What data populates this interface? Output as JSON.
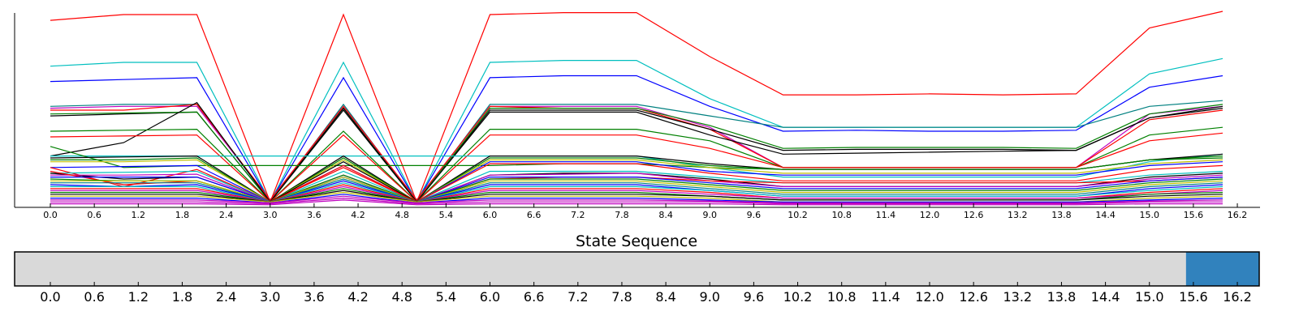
{
  "chart_data": [
    {
      "type": "line",
      "title": "",
      "xlabel": "",
      "ylabel": "",
      "xlim": [
        -0.5,
        16.5
      ],
      "ylim": [
        0,
        100
      ],
      "grid": false,
      "legend": "none",
      "x": [
        0,
        1,
        2,
        3,
        4,
        5,
        6,
        7,
        8,
        9,
        10,
        11,
        12,
        13,
        14,
        15,
        16
      ],
      "x_tick_labels": [
        "0.0",
        "0.6",
        "1.2",
        "1.8",
        "2.4",
        "3.0",
        "3.6",
        "4.2",
        "4.8",
        "5.4",
        "6.0",
        "6.6",
        "7.2",
        "7.8",
        "8.4",
        "9.0",
        "9.6",
        "10.2",
        "10.8",
        "11.4",
        "12.0",
        "12.6",
        "13.2",
        "13.8",
        "14.4",
        "15.0",
        "15.6",
        "16.2"
      ],
      "x_tick_positions": [
        0.0,
        0.6,
        1.2,
        1.8,
        2.4,
        3.0,
        3.6,
        4.2,
        4.8,
        5.4,
        6.0,
        6.6,
        7.2,
        7.8,
        8.4,
        9.0,
        9.6,
        10.2,
        10.8,
        11.4,
        12.0,
        12.6,
        13.2,
        13.8,
        14.4,
        15.0,
        15.6,
        16.2
      ],
      "series": [
        {
          "color": "#ff0000",
          "values": [
            97,
            100,
            100,
            2,
            100,
            2,
            100,
            101,
            101,
            78,
            58,
            58,
            58.5,
            58,
            58.5,
            93,
            102
          ]
        },
        {
          "color": "#00bfbf",
          "values": [
            73,
            75,
            75,
            2,
            75,
            2,
            75,
            76,
            76,
            56,
            41,
            41,
            41,
            41,
            41,
            69,
            77
          ]
        },
        {
          "color": "#0000ff",
          "values": [
            65,
            66,
            67,
            2,
            67,
            2,
            67,
            68,
            68,
            52,
            39,
            39.5,
            39,
            39,
            39.5,
            62,
            68
          ]
        },
        {
          "color": "#008080",
          "values": [
            52,
            53,
            53,
            2,
            53,
            2,
            53,
            53,
            53,
            47,
            41,
            41,
            41,
            41,
            41,
            52,
            55
          ]
        },
        {
          "color": "#bf00bf",
          "values": [
            51,
            52,
            52,
            3,
            52,
            3,
            52,
            52,
            52,
            41,
            20,
            20,
            20,
            20,
            20,
            48,
            52
          ]
        },
        {
          "color": "#ff0000",
          "values": [
            50,
            50,
            53,
            3,
            52,
            3,
            52,
            51,
            51,
            40,
            20,
            20,
            20,
            20,
            20,
            45,
            50
          ]
        },
        {
          "color": "#000000",
          "values": [
            47,
            48,
            49,
            2,
            50,
            2,
            50,
            50,
            50,
            40,
            29,
            29.5,
            29.5,
            29.5,
            29,
            46,
            51
          ]
        },
        {
          "color": "#008000",
          "values": [
            48,
            48.5,
            49,
            2,
            51,
            2,
            51,
            51,
            51,
            42,
            30,
            30.5,
            30.5,
            30.5,
            30,
            48,
            53
          ]
        },
        {
          "color": "#000000",
          "values": [
            26,
            33,
            54,
            2,
            51,
            2,
            49,
            49,
            49,
            37,
            27,
            27.5,
            28,
            28.5,
            29,
            46,
            52
          ]
        },
        {
          "color": "#008000",
          "values": [
            39,
            39.5,
            40,
            2,
            39,
            2,
            40,
            40,
            40,
            34,
            20,
            20,
            20,
            20,
            20,
            37,
            41
          ]
        },
        {
          "color": "#ff0000",
          "values": [
            36,
            36.5,
            37,
            2,
            37,
            2,
            37,
            37,
            37,
            30,
            20,
            20,
            20,
            20,
            20,
            34,
            38
          ]
        },
        {
          "color": "#00bfbf",
          "values": [
            26,
            26,
            26,
            26,
            26,
            26,
            26,
            26,
            26,
            20,
            15,
            15,
            15,
            15,
            15,
            23,
            27
          ]
        },
        {
          "color": "#008000",
          "values": [
            31,
            20,
            21,
            21,
            21,
            21,
            21,
            22,
            22,
            20,
            19,
            19,
            19,
            19,
            19,
            24,
            26
          ]
        },
        {
          "color": "#000000",
          "values": [
            25,
            25.5,
            26,
            2,
            26,
            2,
            26,
            26,
            26,
            22,
            19,
            19,
            19,
            19,
            19,
            24,
            27
          ]
        },
        {
          "color": "#008000",
          "values": [
            24,
            24,
            25,
            2,
            25,
            2,
            25,
            25,
            25,
            21,
            19,
            19,
            19,
            19,
            19,
            24,
            25
          ]
        },
        {
          "color": "#bfbf00",
          "values": [
            23,
            23,
            24,
            2,
            24,
            2,
            24,
            24,
            24,
            20,
            17,
            17,
            17,
            17,
            17,
            22,
            24
          ]
        },
        {
          "color": "#0000ff",
          "values": [
            20,
            20.5,
            21,
            2,
            21,
            2,
            23,
            23,
            23,
            18,
            16,
            16,
            16,
            16,
            16,
            21,
            23
          ]
        },
        {
          "color": "#ff0000",
          "values": [
            20,
            10,
            19,
            2,
            21,
            2,
            22,
            22,
            22,
            17,
            13,
            13,
            13,
            13,
            13,
            19,
            21
          ]
        },
        {
          "color": "#00bfbf",
          "values": [
            17,
            17.5,
            18,
            2,
            18,
            2,
            18,
            18,
            18,
            15,
            12,
            12,
            12,
            12,
            12,
            16,
            18
          ]
        },
        {
          "color": "#000000",
          "values": [
            17,
            14,
            15,
            2,
            23,
            2,
            16,
            17,
            17,
            14,
            10,
            10,
            10,
            10,
            10,
            15,
            17
          ]
        },
        {
          "color": "#bf00bf",
          "values": [
            16,
            16,
            16.5,
            2,
            16,
            2,
            16,
            16.5,
            17,
            13,
            10,
            10,
            10,
            10,
            10,
            14,
            16
          ]
        },
        {
          "color": "#ff0000",
          "values": [
            18,
            11,
            13,
            2,
            20,
            2,
            14,
            15,
            15,
            13,
            12,
            12,
            12,
            12,
            12,
            13,
            15
          ]
        },
        {
          "color": "#0000ff",
          "values": [
            15,
            15,
            15,
            2,
            15,
            2,
            15,
            15,
            15,
            12,
            9,
            9,
            9,
            9,
            9,
            13,
            15
          ]
        },
        {
          "color": "#008000",
          "values": [
            14,
            13,
            13,
            2,
            16,
            2,
            14,
            14,
            14,
            11,
            8,
            8,
            8,
            8,
            8,
            12,
            14
          ]
        },
        {
          "color": "#bfbf00",
          "values": [
            13,
            13,
            13,
            2,
            15,
            2,
            13,
            13,
            13,
            10,
            7,
            7,
            7,
            7,
            7,
            11,
            13
          ]
        },
        {
          "color": "#008080",
          "values": [
            12,
            12,
            12,
            2,
            14,
            2,
            12,
            12,
            12,
            9,
            6,
            6,
            6,
            6,
            6,
            10,
            12
          ]
        },
        {
          "color": "#0000ff",
          "values": [
            11,
            10,
            11,
            2,
            13,
            2,
            11,
            11,
            11,
            8,
            5,
            5,
            5,
            5,
            5,
            9,
            11
          ]
        },
        {
          "color": "#00bfbf",
          "values": [
            10,
            10,
            10,
            2,
            12,
            2,
            10,
            10,
            10,
            8,
            5,
            5,
            5,
            5,
            5,
            8,
            10
          ]
        },
        {
          "color": "#ff0000",
          "values": [
            9,
            9,
            9,
            2,
            11,
            2,
            9,
            9,
            9,
            7,
            4,
            4,
            4,
            4,
            4,
            7,
            9
          ]
        },
        {
          "color": "#bf00bf",
          "values": [
            8,
            8,
            8,
            2,
            10,
            2,
            8,
            8,
            8,
            6,
            4,
            4,
            4,
            4,
            4,
            6,
            8
          ]
        },
        {
          "color": "#008000",
          "values": [
            7,
            7,
            7,
            2,
            9,
            2,
            7,
            7,
            7,
            5,
            3,
            3,
            3,
            3,
            3,
            6,
            7
          ]
        },
        {
          "color": "#000000",
          "values": [
            6,
            6,
            6,
            2,
            8,
            2,
            6,
            6,
            6,
            5,
            3,
            3,
            3,
            3,
            3,
            5,
            6
          ]
        },
        {
          "color": "#bfbf00",
          "values": [
            5,
            5,
            5,
            2,
            7,
            2,
            5,
            5,
            5,
            4,
            2,
            2,
            2,
            2,
            2,
            4,
            5
          ]
        },
        {
          "color": "#0000ff",
          "values": [
            4,
            4,
            4,
            1.5,
            6,
            1.5,
            4,
            4,
            4,
            3,
            2,
            2,
            2,
            2,
            2,
            3,
            4
          ]
        },
        {
          "color": "#bf00bf",
          "values": [
            3,
            3,
            3,
            1.5,
            5,
            1.5,
            3,
            3,
            3,
            2.5,
            1.5,
            1.5,
            1.5,
            1.5,
            1.5,
            2.5,
            3
          ]
        },
        {
          "color": "#bf00bf",
          "values": [
            2,
            2,
            2,
            1,
            4,
            1,
            2,
            2,
            2,
            2,
            1,
            1,
            1,
            1,
            1,
            2,
            2
          ]
        },
        {
          "color": "#bf00bf",
          "values": [
            1,
            1,
            1,
            0.5,
            3,
            0.5,
            1,
            1,
            1,
            1,
            0.5,
            0.5,
            0.5,
            0.5,
            0.5,
            1,
            1
          ]
        }
      ]
    },
    {
      "type": "heatmap",
      "title": "State Sequence",
      "xlim": [
        -0.5,
        16.5
      ],
      "x_tick_labels": [
        "0.0",
        "0.6",
        "1.2",
        "1.8",
        "2.4",
        "3.0",
        "3.6",
        "4.2",
        "4.8",
        "5.4",
        "6.0",
        "6.6",
        "7.2",
        "7.8",
        "8.4",
        "9.0",
        "9.6",
        "10.2",
        "10.8",
        "11.4",
        "12.0",
        "12.6",
        "13.2",
        "13.8",
        "14.4",
        "15.0",
        "15.6",
        "16.2"
      ],
      "x_tick_positions": [
        0.0,
        0.6,
        1.2,
        1.8,
        2.4,
        3.0,
        3.6,
        4.2,
        4.8,
        5.4,
        6.0,
        6.6,
        7.2,
        7.8,
        8.4,
        9.0,
        9.6,
        10.2,
        10.8,
        11.4,
        12.0,
        12.6,
        13.2,
        13.8,
        14.4,
        15.0,
        15.6,
        16.2
      ],
      "segments": [
        {
          "start": -0.5,
          "end": 15.5,
          "state": 0,
          "color": "#d9d9d9"
        },
        {
          "start": 15.5,
          "end": 16.5,
          "state": 1,
          "color": "#3182bd"
        }
      ]
    }
  ]
}
